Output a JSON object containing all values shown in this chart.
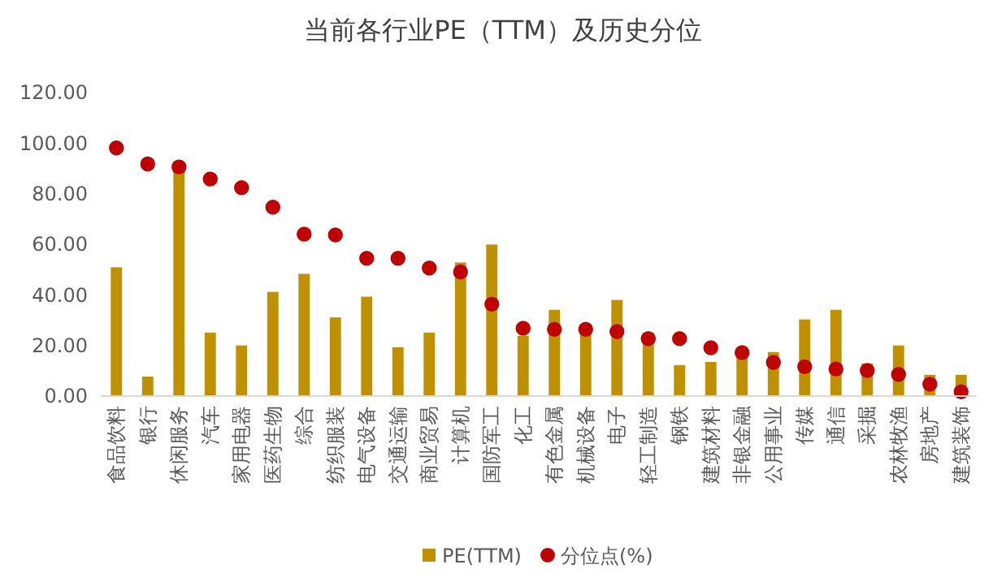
{
  "chart_data": {
    "type": "bar",
    "title": "当前各行业PE（TTM）及历史分位",
    "categories": [
      "食品饮料",
      "银行",
      "休闲服务",
      "汽车",
      "家用电器",
      "医药生物",
      "综合",
      "纺织服装",
      "电气设备",
      "交通运输",
      "商业贸易",
      "计算机",
      "国防军工",
      "化工",
      "有色金属",
      "机械设备",
      "电子",
      "轻工制造",
      "钢铁",
      "建筑材料",
      "非银金融",
      "公用事业",
      "传媒",
      "通信",
      "采掘",
      "农林牧渔",
      "房地产",
      "建筑装饰"
    ],
    "series": [
      {
        "name": "PE(TTM)",
        "color": "#bf9000",
        "values": [
          50.9,
          7.7,
          90.6,
          25.1,
          20.0,
          41.2,
          48.3,
          31.1,
          39.3,
          19.3,
          25.1,
          52.8,
          59.9,
          23.8,
          34.1,
          26.0,
          38.0,
          25.1,
          12.2,
          13.5,
          16.5,
          17.4,
          30.3,
          34.1,
          12.9,
          20.0,
          8.4,
          8.4
        ]
      },
      {
        "name": "分位点(%)",
        "type": "scatter",
        "marker": "circle",
        "color": "#c00000",
        "values": [
          98.1,
          91.8,
          90.6,
          85.8,
          82.4,
          74.7,
          64.0,
          63.7,
          54.5,
          54.5,
          50.6,
          49.1,
          36.3,
          26.8,
          26.4,
          26.4,
          25.5,
          22.7,
          22.7,
          19.1,
          17.2,
          13.3,
          11.6,
          10.7,
          10.1,
          8.6,
          4.7,
          1.7
        ]
      }
    ],
    "ylim": [
      0,
      120
    ],
    "yticks": [
      {
        "value": 0,
        "label": "0.00"
      },
      {
        "value": 20,
        "label": "20.00"
      },
      {
        "value": 40,
        "label": "40.00"
      },
      {
        "value": 60,
        "label": "60.00"
      },
      {
        "value": 80,
        "label": "80.00"
      },
      {
        "value": 100,
        "label": "100.00"
      },
      {
        "value": 120,
        "label": "120.00"
      }
    ],
    "legend": "bottom",
    "grid": false
  }
}
